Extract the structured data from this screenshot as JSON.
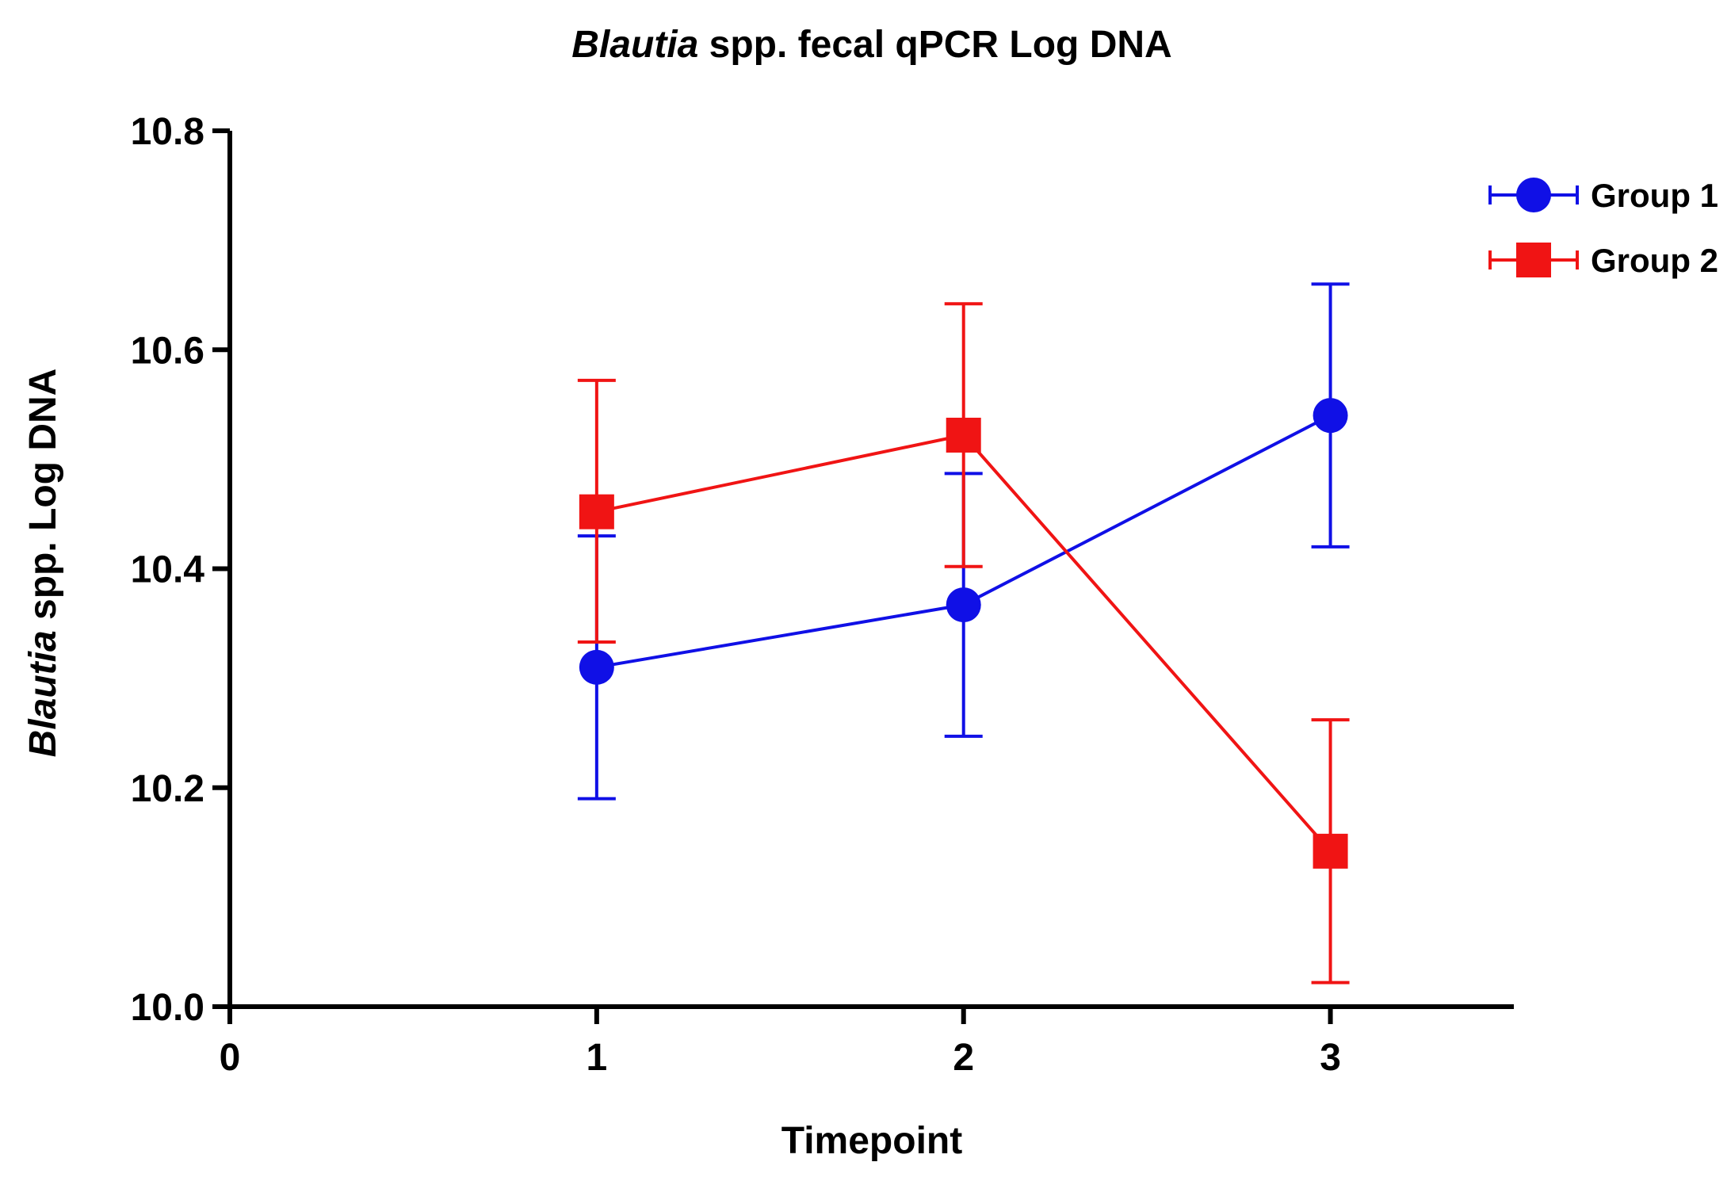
{
  "chart_data": {
    "type": "line",
    "title": {
      "italic": "Blautia",
      "rest": " spp. fecal qPCR Log DNA"
    },
    "xlabel": "Timepoint",
    "ylabel": {
      "italic": "Blautia",
      "rest": " spp. Log DNA"
    },
    "xlim": [
      0,
      3.5
    ],
    "ylim": [
      10.0,
      10.8
    ],
    "xticks": [
      0,
      1,
      2,
      3
    ],
    "xtick_labels": [
      "0",
      "1",
      "2",
      "3"
    ],
    "yticks": [
      10.0,
      10.2,
      10.4,
      10.6,
      10.8
    ],
    "ytick_labels": [
      "10.0",
      "10.2",
      "10.4",
      "10.6",
      "10.8"
    ],
    "grid": false,
    "legend_position": "top-right",
    "series": [
      {
        "name": "Group 1",
        "color": "#1010e6",
        "marker": "circle",
        "x": [
          1,
          2,
          3
        ],
        "y": [
          10.31,
          10.367,
          10.54
        ],
        "err_low": [
          10.19,
          10.247,
          10.42
        ],
        "err_high": [
          10.43,
          10.487,
          10.66
        ]
      },
      {
        "name": "Group 2",
        "color": "#f01414",
        "marker": "square",
        "x": [
          1,
          2,
          3
        ],
        "y": [
          10.452,
          10.522,
          10.142
        ],
        "err_low": [
          10.333,
          10.402,
          10.022
        ],
        "err_high": [
          10.572,
          10.642,
          10.262
        ]
      }
    ]
  }
}
